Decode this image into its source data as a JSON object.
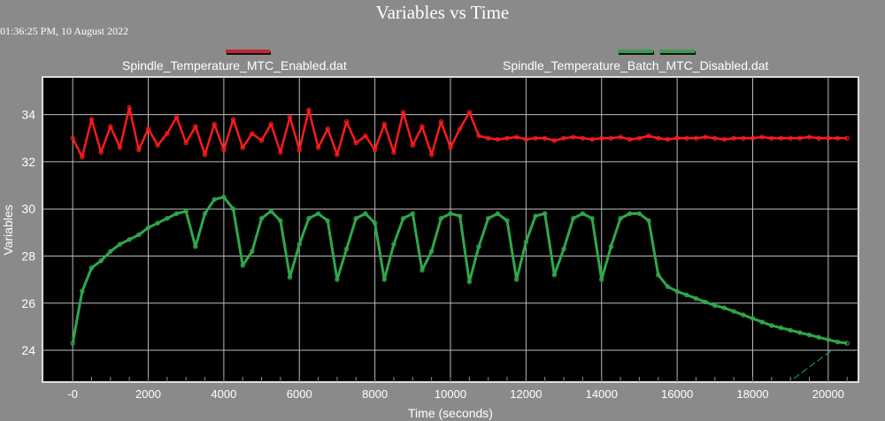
{
  "chart_data": {
    "type": "line",
    "title": "Variables vs Time",
    "timestamp": "01:36:25 PM, 10 August 2022",
    "xlabel": "Time (seconds)",
    "ylabel": "Variables",
    "xlim": [
      -800,
      20800
    ],
    "ylim": [
      22.65,
      35.6
    ],
    "grid": true,
    "legend_position": "top",
    "x_ticks": [
      0,
      2000,
      4000,
      6000,
      8000,
      10000,
      12000,
      14000,
      16000,
      18000,
      20000
    ],
    "x_tick_labels": [
      "-0",
      "2000",
      "4000",
      "6000",
      "8000",
      "10000",
      "12000",
      "14000",
      "16000",
      "18000",
      "20000"
    ],
    "y_ticks": [
      24,
      26,
      28,
      30,
      32,
      34
    ],
    "y_tick_labels": [
      "24",
      "26",
      "28",
      "30",
      "32",
      "34"
    ],
    "x_step": 250,
    "series": [
      {
        "name": "Spindle_Temperature_MTC_Enabled.dat",
        "color": "#ff1a1a",
        "values": [
          33.0,
          32.2,
          33.8,
          32.4,
          33.5,
          32.6,
          34.3,
          32.5,
          33.4,
          32.7,
          33.2,
          33.9,
          32.8,
          33.5,
          32.3,
          33.6,
          32.5,
          33.8,
          32.6,
          33.2,
          32.9,
          33.6,
          32.4,
          33.9,
          32.5,
          34.2,
          32.6,
          33.4,
          32.3,
          33.7,
          32.8,
          33.1,
          32.5,
          33.6,
          32.4,
          34.1,
          32.7,
          33.5,
          32.3,
          33.7,
          32.6,
          33.4,
          34.1,
          33.1,
          33.0,
          32.95,
          33.0,
          33.05,
          32.95,
          33.0,
          33.0,
          32.9,
          33.0,
          33.05,
          33.0,
          32.95,
          33.0,
          33.0,
          33.05,
          32.95,
          33.0,
          33.1,
          33.0,
          32.95,
          33.0,
          33.0,
          33.0,
          33.05,
          33.0,
          32.95,
          33.0,
          33.0,
          33.0,
          33.05,
          33.0,
          33.0,
          33.0,
          33.0,
          33.05,
          33.0,
          33.0,
          33.0,
          33.0
        ]
      },
      {
        "name": "Spindle_Temperature_Batch_MTC_Disabled.dat",
        "color": "#2ea84a",
        "values": [
          24.3,
          26.5,
          27.5,
          27.8,
          28.2,
          28.5,
          28.7,
          28.9,
          29.2,
          29.4,
          29.6,
          29.8,
          29.9,
          28.4,
          29.8,
          30.4,
          30.5,
          30.0,
          27.6,
          28.2,
          29.6,
          29.9,
          29.5,
          27.1,
          28.5,
          29.6,
          29.8,
          29.5,
          27.0,
          28.3,
          29.6,
          29.8,
          29.4,
          27.0,
          28.5,
          29.6,
          29.8,
          27.4,
          28.2,
          29.6,
          29.8,
          29.7,
          26.9,
          28.4,
          29.6,
          29.8,
          29.5,
          27.0,
          28.6,
          29.7,
          29.8,
          27.2,
          28.3,
          29.6,
          29.8,
          29.6,
          27.0,
          28.4,
          29.6,
          29.8,
          29.8,
          29.5,
          27.2,
          26.7,
          26.5,
          26.35,
          26.2,
          26.05,
          25.9,
          25.8,
          25.65,
          25.5,
          25.35,
          25.2,
          25.05,
          24.95,
          24.85,
          24.75,
          24.65,
          24.55,
          24.45,
          24.35,
          24.3
        ]
      }
    ]
  }
}
